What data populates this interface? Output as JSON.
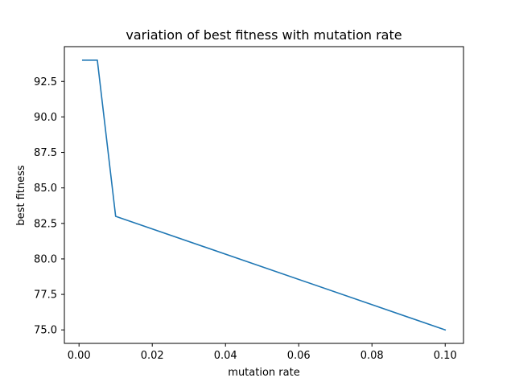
{
  "chart_data": {
    "type": "line",
    "title": "variation of best fitness with mutation rate",
    "xlabel": "mutation rate",
    "ylabel": "best fitness",
    "xlim": [
      -0.004,
      0.105
    ],
    "ylim": [
      74.05,
      94.95
    ],
    "xticks": [
      0.0,
      0.02,
      0.04,
      0.06,
      0.08,
      0.1
    ],
    "xtick_labels": [
      "0.00",
      "0.02",
      "0.04",
      "0.06",
      "0.08",
      "0.10"
    ],
    "yticks": [
      75.0,
      77.5,
      80.0,
      82.5,
      85.0,
      87.5,
      90.0,
      92.5
    ],
    "ytick_labels": [
      "75.0",
      "77.5",
      "80.0",
      "82.5",
      "85.0",
      "87.5",
      "90.0",
      "92.5"
    ],
    "grid": false,
    "series": [
      {
        "x": [
          0.001,
          0.005,
          0.01,
          0.1
        ],
        "y": [
          94.0,
          94.0,
          83.0,
          75.0
        ],
        "color": "#1f77b4"
      }
    ]
  }
}
